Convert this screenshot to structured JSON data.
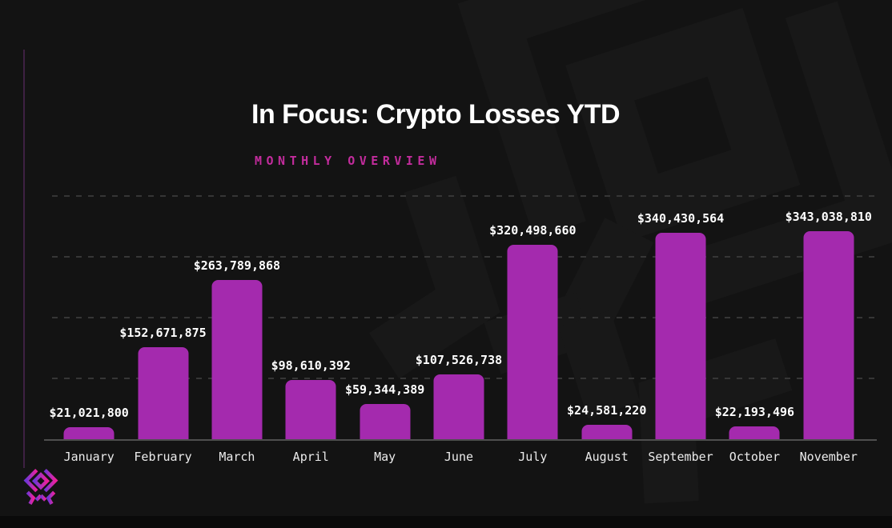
{
  "title": "In Focus: Crypto Losses YTD",
  "subtitle": "MONTHLY OVERVIEW",
  "brand": {
    "logo_icon": "immunefi-mark-icon"
  },
  "colors": {
    "background": "#131313",
    "bar": "#A42AAE",
    "subtitle": "#C32C9D",
    "value_label": "#FFFFFF",
    "month_label": "#ECECEC",
    "gridline": "#3C3C3C",
    "axis": "#4E4E4E",
    "accent_line": "#3E2142",
    "footer_band": "#0A0A0A",
    "watermark": "#1A1A1A",
    "logo_purple": "#6F35D4",
    "logo_pink": "#ED1F9C"
  },
  "chart_data": {
    "type": "bar",
    "title": "In Focus: Crypto Losses YTD",
    "subtitle": "MONTHLY OVERVIEW",
    "categories": [
      "January",
      "February",
      "March",
      "April",
      "May",
      "June",
      "July",
      "August",
      "September",
      "October",
      "November"
    ],
    "values": [
      21021800,
      152671875,
      263789868,
      98610392,
      59344389,
      107526738,
      320498660,
      24581220,
      340430564,
      22193496,
      343038810
    ],
    "value_labels": [
      "$21,021,800",
      "$152,671,875",
      "$263,789,868",
      "$98,610,392",
      "$59,344,389",
      "$107,526,738",
      "$320,498,660",
      "$24,581,220",
      "$340,430,564",
      "$22,193,496",
      "$343,038,810"
    ],
    "xlabel": "",
    "ylabel": "",
    "ylim": [
      0,
      408000000
    ],
    "gridline_values": [
      100000000,
      200000000,
      300000000,
      400000000
    ],
    "grid": "dashed-horizontal",
    "legend": "none",
    "bar_color": "#A42AAE"
  }
}
